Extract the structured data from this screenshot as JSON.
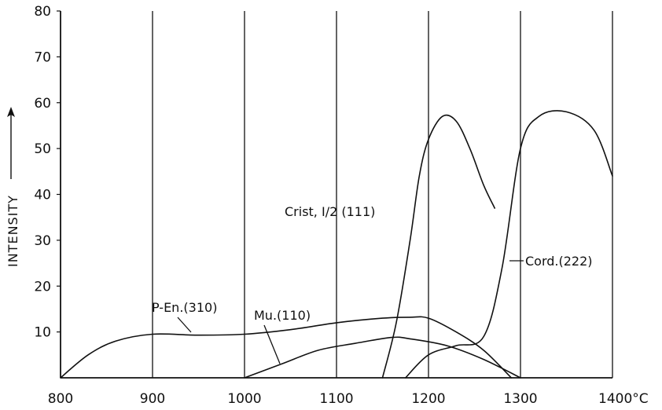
{
  "chart_data": {
    "type": "line",
    "title": "",
    "xlabel": "",
    "ylabel": "INTENSITY",
    "x_unit": "°C",
    "xlim": [
      800,
      1400
    ],
    "ylim": [
      0,
      80
    ],
    "x_ticks": [
      800,
      900,
      1000,
      1100,
      1200,
      1300,
      1400
    ],
    "x_tick_labels": [
      "800",
      "900",
      "1000",
      "1100",
      "1200",
      "1300",
      "1400°C"
    ],
    "y_ticks": [
      10,
      20,
      30,
      40,
      50,
      60,
      70,
      80
    ],
    "y_tick_labels": [
      "10",
      "20",
      "30",
      "40",
      "50",
      "60",
      "70",
      "80"
    ],
    "grid": "vertical",
    "legend": "none",
    "series": [
      {
        "name": "P-En.(310)",
        "x": [
          800,
          830,
          860,
          900,
          950,
          1000,
          1050,
          1100,
          1150,
          1180,
          1200,
          1230,
          1260,
          1290
        ],
        "y": [
          0,
          5,
          8,
          9.5,
          9.3,
          9.5,
          10.5,
          12,
          13,
          13.2,
          13,
          10,
          6,
          0
        ]
      },
      {
        "name": "Mu.(110)",
        "x": [
          1000,
          1040,
          1080,
          1120,
          1160,
          1180,
          1220,
          1260,
          1300
        ],
        "y": [
          0,
          3,
          6,
          7.5,
          8.8,
          8.5,
          7,
          4,
          0
        ]
      },
      {
        "name": "Crist, I/2 (111)",
        "x": [
          1150,
          1165,
          1180,
          1190,
          1200,
          1215,
          1230,
          1245,
          1260,
          1272
        ],
        "y": [
          0,
          12,
          30,
          44,
          52,
          57,
          56,
          50,
          42,
          37
        ]
      },
      {
        "name": "Cord.(222)",
        "x": [
          1175,
          1200,
          1230,
          1260,
          1280,
          1300,
          1320,
          1350,
          1380,
          1400
        ],
        "y": [
          0,
          5,
          7,
          9,
          24,
          50,
          57,
          58,
          54,
          44
        ]
      }
    ],
    "annotations": [
      {
        "text": "P-En.(310)",
        "series": "P-En.(310)"
      },
      {
        "text": "Mu.(110)",
        "series": "Mu.(110)"
      },
      {
        "text": "Crist, I/2 (111)",
        "series": "Crist, I/2 (111)"
      },
      {
        "text": "Cord.(222)",
        "series": "Cord.(222)"
      }
    ]
  }
}
